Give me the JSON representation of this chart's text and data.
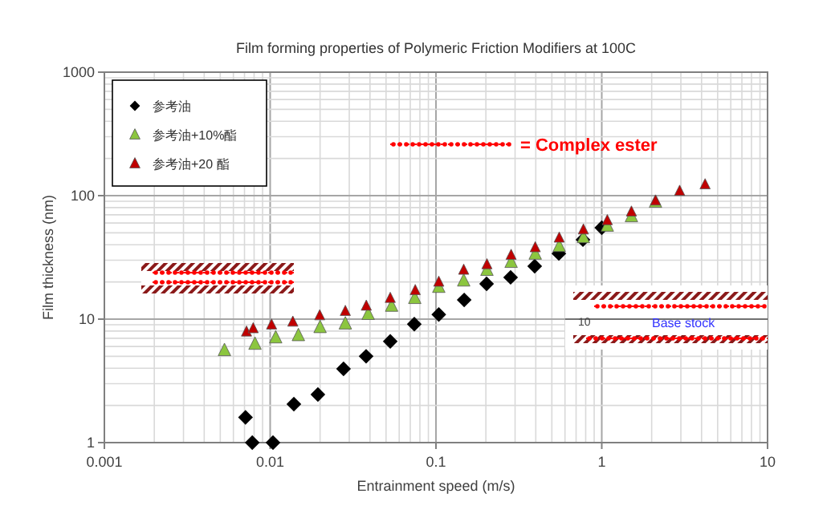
{
  "chart_data": {
    "type": "scatter",
    "title": "Film forming properties of Polymeric Friction Modifiers at 100C",
    "xlabel": "Entrainment speed (m/s)",
    "ylabel": "Film thickness (nm)",
    "log": "xy",
    "xlim": [
      0.001,
      10
    ],
    "ylim": [
      1,
      1000
    ],
    "xticks": [
      0.001,
      0.01,
      0.1,
      1,
      10
    ],
    "yticks": [
      1,
      10,
      100,
      1000
    ],
    "grid": true,
    "legend": "top left",
    "annotations": [
      "= Complex ester",
      "10",
      "Base stock"
    ],
    "series": [
      {
        "name": "参考油",
        "color": "#000000",
        "marker": "diamond",
        "x": [
          0.0071,
          0.0078,
          0.0104,
          0.0139,
          0.0194,
          0.0277,
          0.0379,
          0.053,
          0.074,
          0.104,
          0.148,
          0.202,
          0.282,
          0.394,
          0.551,
          0.77,
          1.0
        ],
        "values": [
          1.6,
          1,
          1,
          2.05,
          2.45,
          3.96,
          5.0,
          6.6,
          9.1,
          10.9,
          14.3,
          19.3,
          21.8,
          26.8,
          34,
          44,
          55
        ]
      },
      {
        "name": "参考油+10%酯",
        "color": "#8cc63f",
        "marker": "triangle",
        "x": [
          0.0053,
          0.0081,
          0.0108,
          0.0148,
          0.02,
          0.0284,
          0.039,
          0.054,
          0.0745,
          0.104,
          0.147,
          0.203,
          0.284,
          0.397,
          0.554,
          0.775,
          1.08,
          1.51,
          2.11
        ],
        "values": [
          5.6,
          6.3,
          7.1,
          7.4,
          8.6,
          9.2,
          11,
          12.8,
          14.8,
          18.2,
          20.5,
          25,
          29,
          33.8,
          39,
          46,
          57,
          68,
          89
        ]
      },
      {
        "name": "参考油+20 酯",
        "color": "#c00000",
        "marker": "triangle",
        "x": [
          0.0072,
          0.0079,
          0.0102,
          0.0137,
          0.0199,
          0.0284,
          0.038,
          0.053,
          0.075,
          0.104,
          0.147,
          0.203,
          0.284,
          0.397,
          0.554,
          0.775,
          1.08,
          1.51,
          2.11,
          2.95,
          4.2
        ],
        "values": [
          7.9,
          8.4,
          9.0,
          9.5,
          10.7,
          11.6,
          12.8,
          14.8,
          17.1,
          20,
          25,
          27.7,
          33,
          38,
          45.5,
          53,
          63,
          74,
          91,
          109,
          123
        ]
      }
    ]
  }
}
